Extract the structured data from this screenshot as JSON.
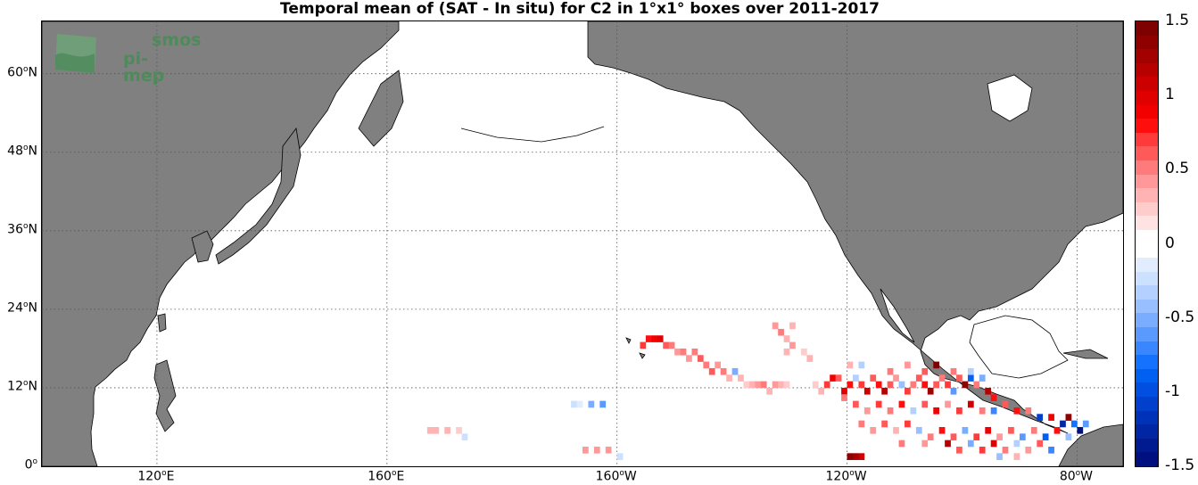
{
  "title": "Temporal mean of (SAT - In situ) for C2 in 1°x1° boxes over 2011-2017",
  "logo": {
    "line1": "smos",
    "line2": "pi-mep"
  },
  "map": {
    "lon_range": [
      100,
      -72
    ],
    "lat_range": [
      0,
      68
    ],
    "land_color": "#808080",
    "ocean_color": "#ffffff",
    "grid_style": "dotted"
  },
  "lat_ticks": [
    {
      "value": 0,
      "num": "0",
      "suffix": ""
    },
    {
      "value": 12,
      "num": "12",
      "suffix": "N"
    },
    {
      "value": 24,
      "num": "24",
      "suffix": "N"
    },
    {
      "value": 36,
      "num": "36",
      "suffix": "N"
    },
    {
      "value": 48,
      "num": "48",
      "suffix": "N"
    },
    {
      "value": 60,
      "num": "60",
      "suffix": "N"
    }
  ],
  "lon_ticks": [
    {
      "value": 120,
      "num": "120",
      "suffix": "E"
    },
    {
      "value": 160,
      "num": "160",
      "suffix": "E"
    },
    {
      "value": -160,
      "num": "160",
      "suffix": "W"
    },
    {
      "value": -120,
      "num": "120",
      "suffix": "W"
    },
    {
      "value": -80,
      "num": "80",
      "suffix": "W"
    }
  ],
  "colorbar": {
    "min": -1.5,
    "max": 1.5,
    "ticks": [
      "1.5",
      "1",
      "0.5",
      "0",
      "-0.5",
      "-1",
      "-1.5"
    ],
    "colors_top_to_bottom": [
      "#7f0000",
      "#8f0000",
      "#a30000",
      "#b70000",
      "#cc0000",
      "#e00000",
      "#f20000",
      "#ff0e0e",
      "#ff3a3a",
      "#ff5a5a",
      "#ff7a7a",
      "#ff9898",
      "#ffb3b3",
      "#ffcccc",
      "#ffe2e2",
      "#ffffff",
      "#ffffff",
      "#e2ecff",
      "#cce0ff",
      "#b3d0ff",
      "#98bfff",
      "#7aadff",
      "#5a9aff",
      "#3a86ff",
      "#1572ff",
      "#0060f2",
      "#004fe0",
      "#0040cc",
      "#0032b7",
      "#0026a3",
      "#001a8f",
      "#00107f"
    ]
  },
  "chart_data": {
    "type": "heatmap",
    "title": "Temporal mean of (SAT - In situ) for C2 in 1°x1° boxes over 2011-2017",
    "xlabel": "",
    "ylabel": "",
    "xlim": [
      "100E",
      "72W"
    ],
    "ylim": [
      0,
      68
    ],
    "value_range": [
      -1.5,
      1.5
    ],
    "cells": [
      {
        "lon": 167.5,
        "lat": 5.5,
        "v": 0.3
      },
      {
        "lon": 168.5,
        "lat": 5.5,
        "v": 0.3
      },
      {
        "lon": 170.5,
        "lat": 5.5,
        "v": 0.3
      },
      {
        "lon": 172.5,
        "lat": 5.5,
        "v": 0.2
      },
      {
        "lon": 173.5,
        "lat": 4.5,
        "v": -0.2
      },
      {
        "lon": -167.5,
        "lat": 9.5,
        "v": -0.2
      },
      {
        "lon": -166.5,
        "lat": 9.5,
        "v": -0.1
      },
      {
        "lon": -164.5,
        "lat": 9.5,
        "v": -0.5
      },
      {
        "lon": -162.5,
        "lat": 9.5,
        "v": -0.6
      },
      {
        "lon": -165.5,
        "lat": 2.5,
        "v": 0.4
      },
      {
        "lon": -163.5,
        "lat": 2.5,
        "v": 0.4
      },
      {
        "lon": -161.5,
        "lat": 2.5,
        "v": 0.4
      },
      {
        "lon": -159.5,
        "lat": 1.5,
        "v": -0.2
      },
      {
        "lon": -155.5,
        "lat": 18.5,
        "v": 0.7
      },
      {
        "lon": -154.5,
        "lat": 19.5,
        "v": 0.8
      },
      {
        "lon": -153.5,
        "lat": 19.5,
        "v": 0.9
      },
      {
        "lon": -152.5,
        "lat": 19.5,
        "v": 1.0
      },
      {
        "lon": -151.5,
        "lat": 18.5,
        "v": 0.6
      },
      {
        "lon": -150.5,
        "lat": 18.5,
        "v": 0.5
      },
      {
        "lon": -149.5,
        "lat": 17.5,
        "v": 0.4
      },
      {
        "lon": -148.5,
        "lat": 17.5,
        "v": 0.5
      },
      {
        "lon": -147.5,
        "lat": 16.5,
        "v": 0.4
      },
      {
        "lon": -146.5,
        "lat": 17.5,
        "v": 0.5
      },
      {
        "lon": -145.5,
        "lat": 16.5,
        "v": 0.6
      },
      {
        "lon": -144.5,
        "lat": 15.5,
        "v": 0.5
      },
      {
        "lon": -143.5,
        "lat": 14.5,
        "v": 0.6
      },
      {
        "lon": -142.5,
        "lat": 15.5,
        "v": 0.4
      },
      {
        "lon": -141.5,
        "lat": 14.5,
        "v": 0.5
      },
      {
        "lon": -140.5,
        "lat": 13.5,
        "v": 0.3
      },
      {
        "lon": -139.5,
        "lat": 14.5,
        "v": -0.5
      },
      {
        "lon": -138.5,
        "lat": 13.5,
        "v": 0.3
      },
      {
        "lon": -137.5,
        "lat": 12.5,
        "v": 0.2
      },
      {
        "lon": -136.5,
        "lat": 12.5,
        "v": 0.3
      },
      {
        "lon": -135.5,
        "lat": 12.5,
        "v": 0.4
      },
      {
        "lon": -134.5,
        "lat": 12.5,
        "v": 0.5
      },
      {
        "lon": -133.5,
        "lat": 11.5,
        "v": 0.3
      },
      {
        "lon": -132.5,
        "lat": 12.5,
        "v": 0.4
      },
      {
        "lon": -131.5,
        "lat": 12.5,
        "v": 0.3
      },
      {
        "lon": -130.5,
        "lat": 12.5,
        "v": 0.2
      },
      {
        "lon": -132.5,
        "lat": 21.5,
        "v": 0.4
      },
      {
        "lon": -131.5,
        "lat": 20.5,
        "v": 0.5
      },
      {
        "lon": -129.5,
        "lat": 21.5,
        "v": 0.3
      },
      {
        "lon": -130.5,
        "lat": 19.5,
        "v": 0.3
      },
      {
        "lon": -129.5,
        "lat": 18.5,
        "v": 0.4
      },
      {
        "lon": -130.5,
        "lat": 17.5,
        "v": 0.3
      },
      {
        "lon": -127.5,
        "lat": 17.5,
        "v": 0.2
      },
      {
        "lon": -126.5,
        "lat": 16.5,
        "v": 0.3
      },
      {
        "lon": -125.5,
        "lat": 12.5,
        "v": 0.2
      },
      {
        "lon": -124.5,
        "lat": 11.5,
        "v": 0.3
      },
      {
        "lon": -123.5,
        "lat": 12.5,
        "v": 0.7
      },
      {
        "lon": -122.5,
        "lat": 13.5,
        "v": 0.9
      },
      {
        "lon": -121.5,
        "lat": 13.5,
        "v": 0.6
      },
      {
        "lon": -120.5,
        "lat": 11.5,
        "v": 1.0
      },
      {
        "lon": -119.5,
        "lat": 12.5,
        "v": 0.8
      },
      {
        "lon": -118.5,
        "lat": 13.5,
        "v": -0.3
      },
      {
        "lon": -117.5,
        "lat": 12.5,
        "v": 0.7
      },
      {
        "lon": -116.5,
        "lat": 11.5,
        "v": 1.1
      },
      {
        "lon": -115.5,
        "lat": 13.5,
        "v": 0.6
      },
      {
        "lon": -114.5,
        "lat": 12.5,
        "v": 0.8
      },
      {
        "lon": -113.5,
        "lat": 11.5,
        "v": 1.2
      },
      {
        "lon": -112.5,
        "lat": 12.5,
        "v": 0.6
      },
      {
        "lon": -111.5,
        "lat": 13.5,
        "v": 0.4
      },
      {
        "lon": -110.5,
        "lat": 12.5,
        "v": -0.4
      },
      {
        "lon": -109.5,
        "lat": 11.5,
        "v": 0.7
      },
      {
        "lon": -108.5,
        "lat": 12.5,
        "v": 0.5
      },
      {
        "lon": -107.5,
        "lat": 13.5,
        "v": 0.6
      },
      {
        "lon": -106.5,
        "lat": 12.5,
        "v": 0.8
      },
      {
        "lon": -105.5,
        "lat": 11.5,
        "v": 1.3
      },
      {
        "lon": -104.5,
        "lat": 12.5,
        "v": 0.6
      },
      {
        "lon": -103.5,
        "lat": 13.5,
        "v": 0.5
      },
      {
        "lon": -102.5,
        "lat": 12.5,
        "v": 0.7
      },
      {
        "lon": -101.5,
        "lat": 11.5,
        "v": -0.6
      },
      {
        "lon": -100.5,
        "lat": 13.5,
        "v": 0.6
      },
      {
        "lon": -99.5,
        "lat": 12.5,
        "v": 1.4
      },
      {
        "lon": -98.5,
        "lat": 13.5,
        "v": -0.9
      },
      {
        "lon": -97.5,
        "lat": 12.5,
        "v": 0.5
      },
      {
        "lon": -96.5,
        "lat": 13.5,
        "v": -0.5
      },
      {
        "lon": -95.5,
        "lat": 11.5,
        "v": 1.2
      },
      {
        "lon": -94.5,
        "lat": 10.5,
        "v": 0.8
      },
      {
        "lon": -120.5,
        "lat": 10.5,
        "v": 0.5
      },
      {
        "lon": -118.5,
        "lat": 9.5,
        "v": 0.6
      },
      {
        "lon": -116.5,
        "lat": 8.5,
        "v": 0.4
      },
      {
        "lon": -114.5,
        "lat": 9.5,
        "v": 0.7
      },
      {
        "lon": -112.5,
        "lat": 8.5,
        "v": 0.5
      },
      {
        "lon": -110.5,
        "lat": 9.5,
        "v": 0.8
      },
      {
        "lon": -108.5,
        "lat": 8.5,
        "v": -0.3
      },
      {
        "lon": -106.5,
        "lat": 9.5,
        "v": 0.6
      },
      {
        "lon": -104.5,
        "lat": 8.5,
        "v": 0.9
      },
      {
        "lon": -102.5,
        "lat": 9.5,
        "v": 0.4
      },
      {
        "lon": -100.5,
        "lat": 8.5,
        "v": 0.7
      },
      {
        "lon": -98.5,
        "lat": 9.5,
        "v": 1.1
      },
      {
        "lon": -96.5,
        "lat": 8.5,
        "v": 0.5
      },
      {
        "lon": -94.5,
        "lat": 8.5,
        "v": -0.7
      },
      {
        "lon": -92.5,
        "lat": 9.5,
        "v": 0.6
      },
      {
        "lon": -90.5,
        "lat": 8.5,
        "v": 0.8
      },
      {
        "lon": -88.5,
        "lat": 8.5,
        "v": 0.5
      },
      {
        "lon": -86.5,
        "lat": 7.5,
        "v": -1.1
      },
      {
        "lon": -84.5,
        "lat": 7.5,
        "v": 0.9
      },
      {
        "lon": -82.5,
        "lat": 6.5,
        "v": -1.3
      },
      {
        "lon": -81.5,
        "lat": 7.5,
        "v": 1.4
      },
      {
        "lon": -80.5,
        "lat": 6.5,
        "v": -0.8
      },
      {
        "lon": -79.5,
        "lat": 5.5,
        "v": -1.5
      },
      {
        "lon": -78.5,
        "lat": 6.5,
        "v": -0.6
      },
      {
        "lon": -117.5,
        "lat": 6.5,
        "v": 0.5
      },
      {
        "lon": -115.5,
        "lat": 5.5,
        "v": 0.4
      },
      {
        "lon": -113.5,
        "lat": 6.5,
        "v": 0.6
      },
      {
        "lon": -111.5,
        "lat": 5.5,
        "v": 0.3
      },
      {
        "lon": -109.5,
        "lat": 6.5,
        "v": 0.7
      },
      {
        "lon": -107.5,
        "lat": 5.5,
        "v": -0.4
      },
      {
        "lon": -105.5,
        "lat": 4.5,
        "v": 0.5
      },
      {
        "lon": -103.5,
        "lat": 5.5,
        "v": 0.8
      },
      {
        "lon": -101.5,
        "lat": 4.5,
        "v": 0.6
      },
      {
        "lon": -99.5,
        "lat": 5.5,
        "v": -0.5
      },
      {
        "lon": -97.5,
        "lat": 4.5,
        "v": 0.7
      },
      {
        "lon": -95.5,
        "lat": 5.5,
        "v": 0.9
      },
      {
        "lon": -93.5,
        "lat": 4.5,
        "v": 0.4
      },
      {
        "lon": -91.5,
        "lat": 5.5,
        "v": 0.6
      },
      {
        "lon": -89.5,
        "lat": 4.5,
        "v": -0.6
      },
      {
        "lon": -87.5,
        "lat": 5.5,
        "v": 0.5
      },
      {
        "lon": -85.5,
        "lat": 4.5,
        "v": -0.9
      },
      {
        "lon": -83.5,
        "lat": 5.5,
        "v": 0.8
      },
      {
        "lon": -81.5,
        "lat": 4.5,
        "v": -0.4
      },
      {
        "lon": -110.5,
        "lat": 3.5,
        "v": 0.5
      },
      {
        "lon": -106.5,
        "lat": 3.5,
        "v": 0.4
      },
      {
        "lon": -102.5,
        "lat": 3.5,
        "v": 1.2
      },
      {
        "lon": -100.5,
        "lat": 2.5,
        "v": 0.6
      },
      {
        "lon": -98.5,
        "lat": 3.5,
        "v": -0.5
      },
      {
        "lon": -96.5,
        "lat": 2.5,
        "v": 0.7
      },
      {
        "lon": -94.5,
        "lat": 3.5,
        "v": 1.0
      },
      {
        "lon": -92.5,
        "lat": 2.5,
        "v": 0.5
      },
      {
        "lon": -90.5,
        "lat": 3.5,
        "v": -0.3
      },
      {
        "lon": -88.5,
        "lat": 2.5,
        "v": 0.4
      },
      {
        "lon": -86.5,
        "lat": 3.5,
        "v": 0.6
      },
      {
        "lon": -84.5,
        "lat": 2.5,
        "v": -0.7
      },
      {
        "lon": -93.5,
        "lat": 1.5,
        "v": -0.4
      },
      {
        "lon": -90.5,
        "lat": 1.5,
        "v": 0.3
      },
      {
        "lon": -119.5,
        "lat": 1.5,
        "v": 1.4
      },
      {
        "lon": -118.5,
        "lat": 1.5,
        "v": 1.3
      },
      {
        "lon": -117.5,
        "lat": 1.5,
        "v": 1.1
      },
      {
        "lon": -98.5,
        "lat": 14.5,
        "v": -0.3
      },
      {
        "lon": -101.5,
        "lat": 14.5,
        "v": 0.5
      },
      {
        "lon": -104.5,
        "lat": 15.5,
        "v": 1.5
      },
      {
        "lon": -106.5,
        "lat": 14.5,
        "v": 0.6
      },
      {
        "lon": -109.5,
        "lat": 15.5,
        "v": 0.4
      },
      {
        "lon": -112.5,
        "lat": 14.5,
        "v": 0.5
      },
      {
        "lon": -117.5,
        "lat": 15.5,
        "v": -0.3
      },
      {
        "lon": -119.5,
        "lat": 15.5,
        "v": 0.3
      }
    ]
  }
}
